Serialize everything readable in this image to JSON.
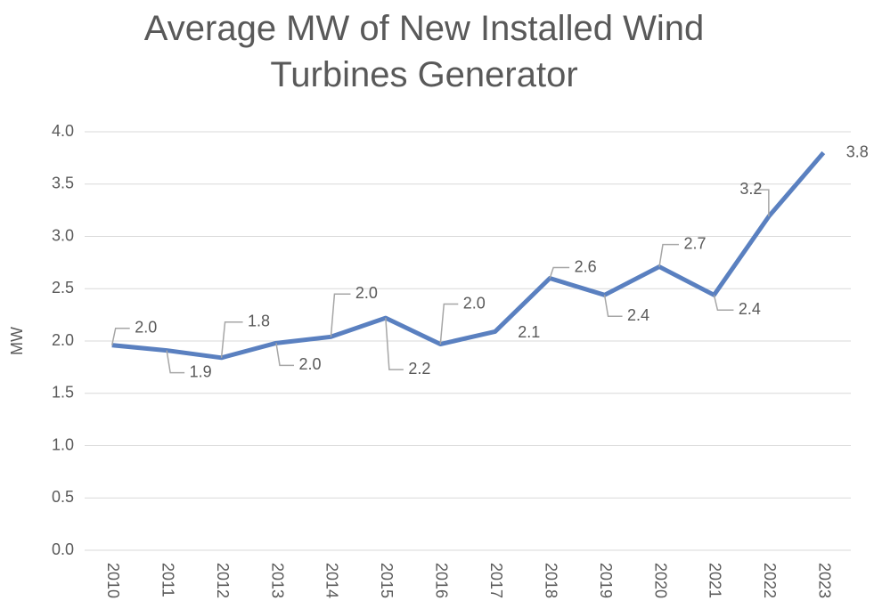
{
  "chart_data": {
    "type": "line",
    "title": "Average MW of New Installed Wind Turbines Generator",
    "y_label": "MW",
    "categories": [
      "2010",
      "2011",
      "2012",
      "2013",
      "2014",
      "2015",
      "2016",
      "2017",
      "2018",
      "2019",
      "2020",
      "2021",
      "2022",
      "2023"
    ],
    "series": [
      {
        "name": "Average MW",
        "color": "#5a80c0",
        "values": [
          1.96,
          1.91,
          1.84,
          1.98,
          2.04,
          2.22,
          1.97,
          2.09,
          2.6,
          2.44,
          2.71,
          2.44,
          3.19,
          3.8
        ],
        "value_labels": [
          "2.0",
          "1.9",
          "1.8",
          "2.0",
          "2.0",
          "2.2",
          "2.0",
          "2.1",
          "2.6",
          "2.4",
          "2.7",
          "2.4",
          "3.2",
          "3.8"
        ]
      }
    ],
    "ylim": [
      0,
      4
    ],
    "yticks": [
      {
        "value": 0,
        "label": "0.0"
      },
      {
        "value": 0.5,
        "label": "0.5"
      },
      {
        "value": 1,
        "label": "1.0"
      },
      {
        "value": 1.5,
        "label": "1.5"
      },
      {
        "value": 2,
        "label": "2.0"
      },
      {
        "value": 2.5,
        "label": "2.5"
      },
      {
        "value": 3,
        "label": "3.0"
      },
      {
        "value": 3.5,
        "label": "3.5"
      },
      {
        "value": 4,
        "label": "4.0"
      }
    ],
    "grid": true
  }
}
